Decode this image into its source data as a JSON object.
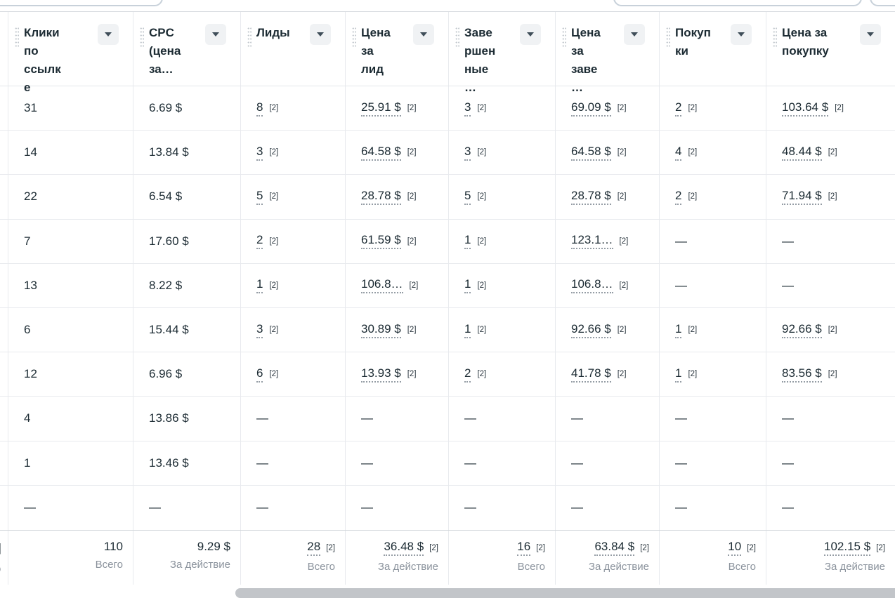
{
  "colors": {
    "text": "#1c2b33",
    "muted_label": "#8a929c",
    "grid_line": "#e8eaee",
    "footer_border": "#d2d6db",
    "dropdown_button_bg": "#f0f2f4",
    "dotted_underline": "#959da5",
    "scrollbar": "#c2c5c9",
    "toolbar_fragment_border": "#c8d1da"
  },
  "table": {
    "columns": [
      {
        "id": "link-clicks",
        "label": "Клики по ссылке",
        "footer": {
          "value": "110",
          "label": "Всего"
        }
      },
      {
        "id": "cpc",
        "label": "CPC (цена за…",
        "footer": {
          "value": "9.29 $",
          "label": "За действие"
        }
      },
      {
        "id": "leads",
        "label": "Лиды",
        "footer": {
          "value": "28",
          "tag": "[2]",
          "label": "Всего"
        }
      },
      {
        "id": "cost-per-lead",
        "label": "Цена за лид",
        "footer": {
          "value": "36.48 $",
          "tag": "[2]",
          "label": "За действие"
        }
      },
      {
        "id": "completed",
        "label": "Завершенные…",
        "footer": {
          "value": "16",
          "tag": "[2]",
          "label": "Всего"
        }
      },
      {
        "id": "cost-per-completed",
        "label": "Цена за заве…",
        "footer": {
          "value": "63.84 $",
          "tag": "[2]",
          "label": "За действие"
        }
      },
      {
        "id": "purchases",
        "label": "Покупки",
        "footer": {
          "value": "10",
          "tag": "[2]",
          "label": "Всего"
        }
      },
      {
        "id": "cost-per-purchase",
        "label": "Цена за покупку",
        "footer": {
          "value": "102.15 $",
          "tag": "[2]",
          "label": "За действие"
        }
      }
    ],
    "rows": [
      {
        "cells": [
          {
            "v": "31"
          },
          {
            "v": "6.69 $"
          },
          {
            "v": "8",
            "tag": "[2]"
          },
          {
            "v": "25.91 $",
            "tag": "[2]"
          },
          {
            "v": "3",
            "tag": "[2]"
          },
          {
            "v": "69.09 $",
            "tag": "[2]"
          },
          {
            "v": "2",
            "tag": "[2]"
          },
          {
            "v": "103.64 $",
            "tag": "[2]"
          }
        ]
      },
      {
        "cells": [
          {
            "v": "14"
          },
          {
            "v": "13.84 $"
          },
          {
            "v": "3",
            "tag": "[2]"
          },
          {
            "v": "64.58 $",
            "tag": "[2]"
          },
          {
            "v": "3",
            "tag": "[2]"
          },
          {
            "v": "64.58 $",
            "tag": "[2]"
          },
          {
            "v": "4",
            "tag": "[2]"
          },
          {
            "v": "48.44 $",
            "tag": "[2]"
          }
        ]
      },
      {
        "cells": [
          {
            "v": "22"
          },
          {
            "v": "6.54 $"
          },
          {
            "v": "5",
            "tag": "[2]"
          },
          {
            "v": "28.78 $",
            "tag": "[2]"
          },
          {
            "v": "5",
            "tag": "[2]"
          },
          {
            "v": "28.78 $",
            "tag": "[2]"
          },
          {
            "v": "2",
            "tag": "[2]"
          },
          {
            "v": "71.94 $",
            "tag": "[2]"
          }
        ]
      },
      {
        "cells": [
          {
            "v": "7"
          },
          {
            "v": "17.60 $"
          },
          {
            "v": "2",
            "tag": "[2]"
          },
          {
            "v": "61.59 $",
            "tag": "[2]"
          },
          {
            "v": "1",
            "tag": "[2]"
          },
          {
            "v": "123.1…",
            "tag": "[2]"
          },
          {
            "v": "—"
          },
          {
            "v": "—"
          }
        ]
      },
      {
        "cells": [
          {
            "v": "13"
          },
          {
            "v": "8.22 $"
          },
          {
            "v": "1",
            "tag": "[2]"
          },
          {
            "v": "106.8…",
            "tag": "[2]"
          },
          {
            "v": "1",
            "tag": "[2]"
          },
          {
            "v": "106.8…",
            "tag": "[2]"
          },
          {
            "v": "—"
          },
          {
            "v": "—"
          }
        ]
      },
      {
        "cells": [
          {
            "v": "6"
          },
          {
            "v": "15.44 $"
          },
          {
            "v": "3",
            "tag": "[2]"
          },
          {
            "v": "30.89 $",
            "tag": "[2]"
          },
          {
            "v": "1",
            "tag": "[2]"
          },
          {
            "v": "92.66 $",
            "tag": "[2]"
          },
          {
            "v": "1",
            "tag": "[2]"
          },
          {
            "v": "92.66 $",
            "tag": "[2]"
          }
        ]
      },
      {
        "cells": [
          {
            "v": "12"
          },
          {
            "v": "6.96 $"
          },
          {
            "v": "6",
            "tag": "[2]"
          },
          {
            "v": "13.93 $",
            "tag": "[2]"
          },
          {
            "v": "2",
            "tag": "[2]"
          },
          {
            "v": "41.78 $",
            "tag": "[2]"
          },
          {
            "v": "1",
            "tag": "[2]"
          },
          {
            "v": "83.56 $",
            "tag": "[2]"
          }
        ]
      },
      {
        "cells": [
          {
            "v": "4"
          },
          {
            "v": "13.86 $"
          },
          {
            "v": "—"
          },
          {
            "v": "—"
          },
          {
            "v": "—"
          },
          {
            "v": "—"
          },
          {
            "v": "—"
          },
          {
            "v": "—"
          }
        ]
      },
      {
        "cells": [
          {
            "v": "1"
          },
          {
            "v": "13.46 $"
          },
          {
            "v": "—"
          },
          {
            "v": "—"
          },
          {
            "v": "—"
          },
          {
            "v": "—"
          },
          {
            "v": "—"
          },
          {
            "v": "—"
          }
        ]
      },
      {
        "cells": [
          {
            "v": "—"
          },
          {
            "v": "—"
          },
          {
            "v": "—"
          },
          {
            "v": "—"
          },
          {
            "v": "—"
          },
          {
            "v": "—"
          },
          {
            "v": "—"
          },
          {
            "v": "—"
          }
        ]
      }
    ],
    "cutoff_footer": {
      "value_fragment": "]",
      "label_fragment": "о"
    }
  }
}
